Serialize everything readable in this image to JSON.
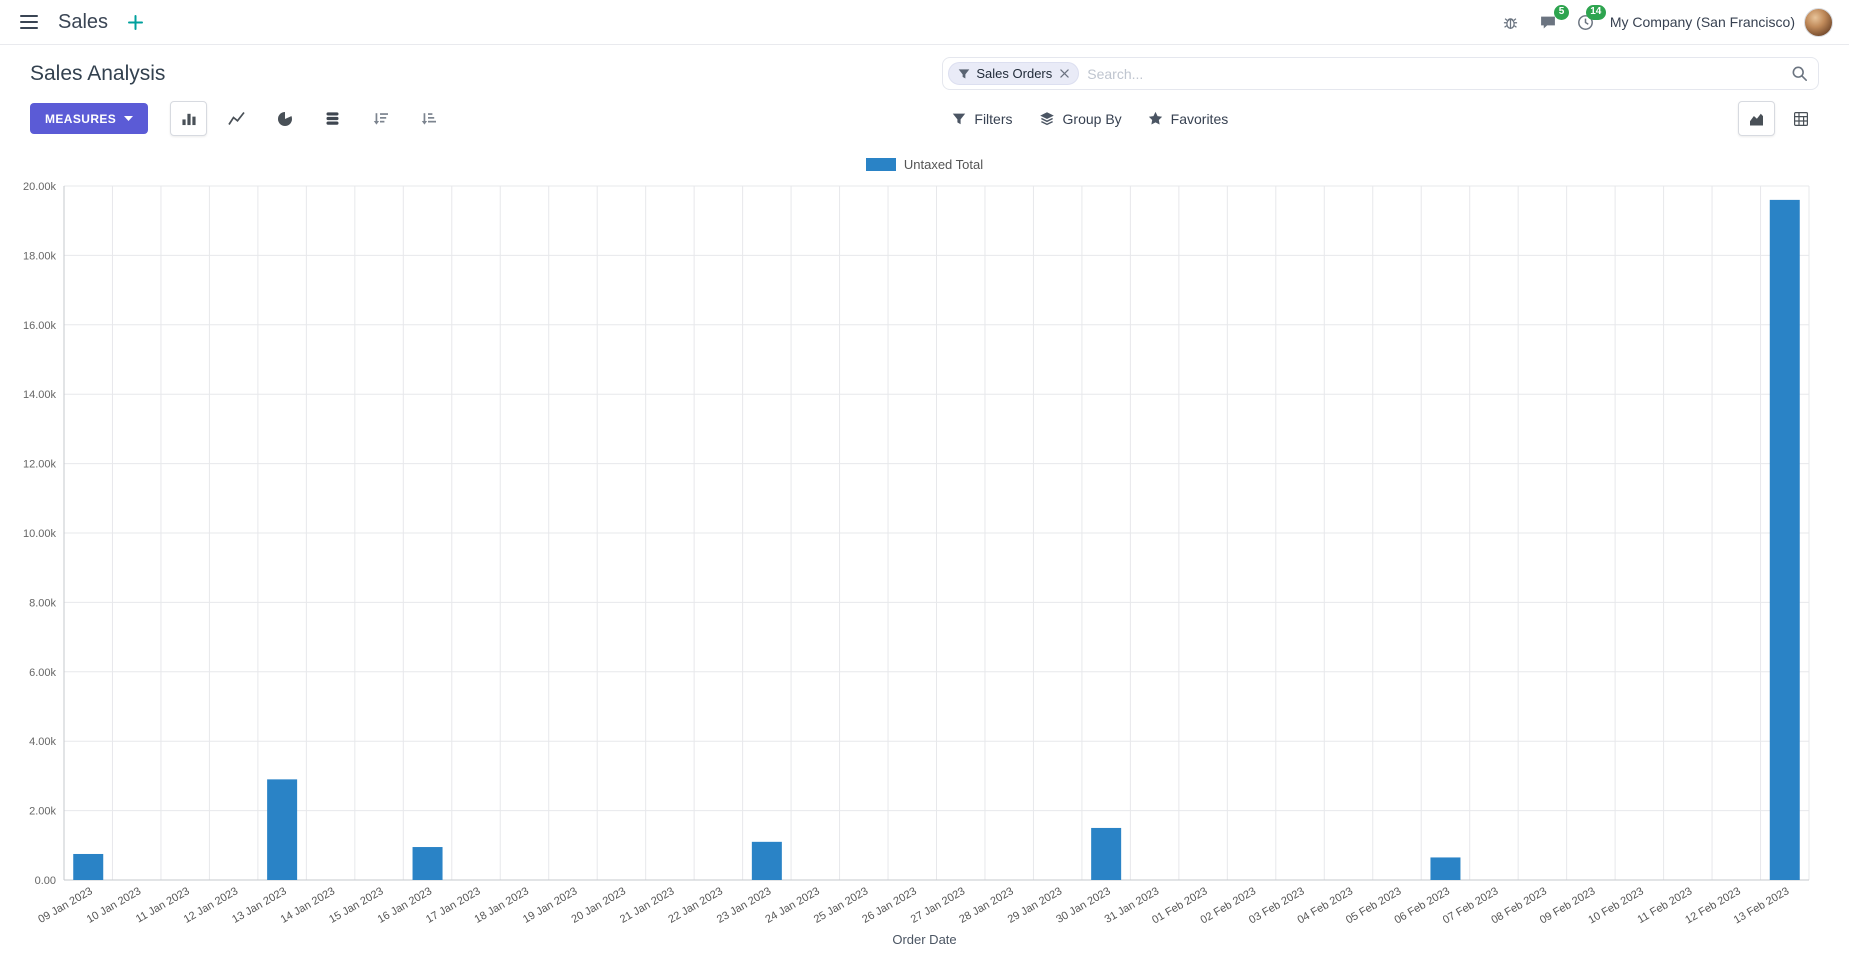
{
  "colors": {
    "primary": "#5b5bd6",
    "bar": "#2a83c6",
    "badge": "#2ea44f"
  },
  "topbar": {
    "app_name": "Sales",
    "messages_badge": "5",
    "activities_badge": "14",
    "company": "My Company (San Francisco)"
  },
  "control_panel": {
    "title": "Sales Analysis",
    "search": {
      "facet_label": "Sales Orders",
      "placeholder": "Search..."
    },
    "measures_label": "MEASURES",
    "buttons": {
      "filters": "Filters",
      "group_by": "Group By",
      "favorites": "Favorites"
    }
  },
  "chart_data": {
    "type": "bar",
    "title": "",
    "xlabel": "Order Date",
    "ylabel": "",
    "ylim": [
      0,
      20000
    ],
    "grid": true,
    "legend_position": "top",
    "ytick_labels": [
      "0.00",
      "2.00k",
      "4.00k",
      "6.00k",
      "8.00k",
      "10.00k",
      "12.00k",
      "14.00k",
      "16.00k",
      "18.00k",
      "20.00k"
    ],
    "categories": [
      "09 Jan 2023",
      "10 Jan 2023",
      "11 Jan 2023",
      "12 Jan 2023",
      "13 Jan 2023",
      "14 Jan 2023",
      "15 Jan 2023",
      "16 Jan 2023",
      "17 Jan 2023",
      "18 Jan 2023",
      "19 Jan 2023",
      "20 Jan 2023",
      "21 Jan 2023",
      "22 Jan 2023",
      "23 Jan 2023",
      "24 Jan 2023",
      "25 Jan 2023",
      "26 Jan 2023",
      "27 Jan 2023",
      "28 Jan 2023",
      "29 Jan 2023",
      "30 Jan 2023",
      "31 Jan 2023",
      "01 Feb 2023",
      "02 Feb 2023",
      "03 Feb 2023",
      "04 Feb 2023",
      "05 Feb 2023",
      "06 Feb 2023",
      "07 Feb 2023",
      "08 Feb 2023",
      "09 Feb 2023",
      "10 Feb 2023",
      "11 Feb 2023",
      "12 Feb 2023",
      "13 Feb 2023"
    ],
    "series": [
      {
        "name": "Untaxed Total",
        "color": "#2a83c6",
        "values": [
          750,
          0,
          0,
          0,
          2900,
          0,
          0,
          950,
          0,
          0,
          0,
          0,
          0,
          0,
          1100,
          0,
          0,
          0,
          0,
          0,
          0,
          1500,
          0,
          0,
          0,
          0,
          0,
          0,
          650,
          0,
          0,
          0,
          0,
          0,
          0,
          19600
        ]
      }
    ]
  }
}
